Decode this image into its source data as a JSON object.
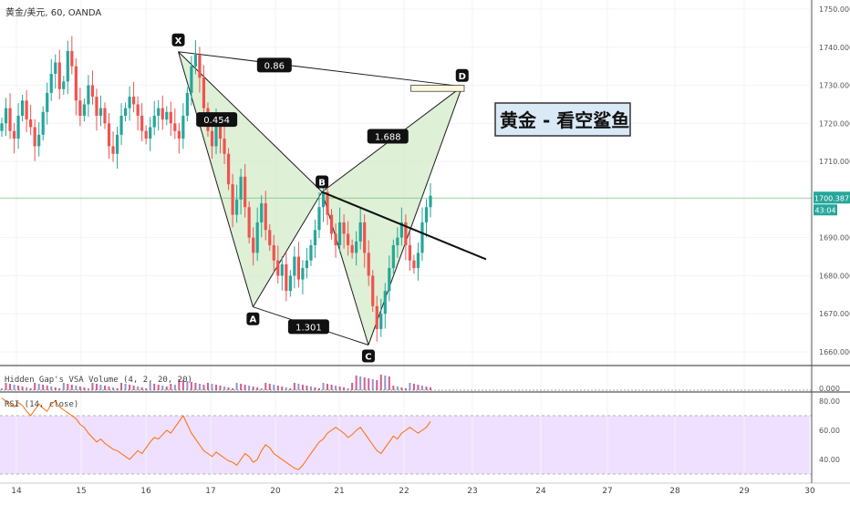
{
  "header": {
    "title": "黄金/美元, 60, OANDA"
  },
  "annotation_title": "黄金 - 看空鲨鱼",
  "colors": {
    "up": "#26a69a",
    "down": "#ef5350",
    "pattern_fill": "#d6eccc",
    "pattern_stroke": "#1e1e1e",
    "rsi_line": "#ff6d00",
    "rsi_band": "#efe0ff",
    "price_line": "#4caf50",
    "price_tag": "#26a69a",
    "zone_fill": "#fff8dc"
  },
  "chart_data": [
    {
      "type": "candlestick",
      "title": "黄金/美元, 60, OANDA",
      "ylim": [
        1652,
        1753
      ],
      "yticks": [
        1660,
        1670,
        1680,
        1690,
        1700,
        1710,
        1720,
        1730,
        1740,
        1750
      ],
      "ytick_labels": [
        "1660.000",
        "1670.000",
        "1680.000",
        "1690.000",
        "1700.000",
        "1710.000",
        "1720.000",
        "1730.000",
        "1740.000",
        "1750.000"
      ],
      "xlim": [
        13.65,
        30
      ],
      "xticks": [
        14,
        15,
        16,
        17,
        20,
        21,
        22,
        23,
        24,
        27,
        28,
        29,
        30
      ],
      "xtick_labels": [
        "14",
        "15",
        "16",
        "17",
        "20",
        "21",
        "22",
        "23",
        "24",
        "27",
        "28",
        "29",
        "30"
      ],
      "last_price": "1700.387",
      "countdown": "43:04",
      "last_price_value": 1700.387,
      "candles_close": [
        1720,
        1724,
        1718,
        1716,
        1722,
        1726,
        1721,
        1719,
        1714,
        1717,
        1723,
        1728,
        1733,
        1736,
        1729,
        1731,
        1739,
        1735,
        1726,
        1722,
        1725,
        1730,
        1727,
        1722,
        1724,
        1720,
        1714,
        1712,
        1717,
        1722,
        1724,
        1727,
        1725,
        1722,
        1718,
        1716,
        1719,
        1722,
        1724,
        1721,
        1723,
        1720,
        1718,
        1716,
        1722,
        1728,
        1735,
        1738,
        1732,
        1724,
        1718,
        1714,
        1720,
        1716,
        1712,
        1704,
        1696,
        1700,
        1706,
        1698,
        1690,
        1686,
        1694,
        1699,
        1692,
        1688,
        1684,
        1680,
        1683,
        1676,
        1680,
        1685,
        1679,
        1682,
        1684,
        1688,
        1692,
        1698,
        1702,
        1696,
        1691,
        1688,
        1694,
        1691,
        1688,
        1686,
        1689,
        1694,
        1686,
        1680,
        1672,
        1666,
        1670,
        1676,
        1682,
        1688,
        1690,
        1694,
        1688,
        1684,
        1682,
        1686,
        1694,
        1698,
        1701
      ]
    },
    {
      "type": "pattern",
      "name": "XABCD",
      "points": [
        {
          "label": "X",
          "x": 16.5,
          "y": 1738.8
        },
        {
          "label": "A",
          "x": 18.96,
          "y": 1671.8
        },
        {
          "label": "B",
          "x": 20.73,
          "y": 1702.0
        },
        {
          "label": "C",
          "x": 21.45,
          "y": 1661.8
        },
        {
          "label": "D",
          "x": 22.85,
          "y": 1729.7
        }
      ],
      "ratios": [
        {
          "label": "0.454",
          "x": 17.28,
          "y": 1721.0
        },
        {
          "label": "1.301",
          "x": 20.52,
          "y": 1666.6
        },
        {
          "label": "1.688",
          "x": 21.75,
          "y": 1716.6
        },
        {
          "label": "0.86",
          "x": 19.95,
          "y": 1735.3
        }
      ],
      "trendline": {
        "x1": 20.73,
        "y1": 1702.0,
        "x2": 23.2,
        "y2": 1684.3
      },
      "target_zone": {
        "x1": 22.1,
        "x2": 22.88,
        "y1": 1728.4,
        "y2": 1730.0
      }
    },
    {
      "type": "bar",
      "title": "Hidden Gap's VSA Volume (4, 2, 20, 20)",
      "ytick_labels": [
        "0.000"
      ],
      "ytick_values": [
        0
      ]
    },
    {
      "type": "line",
      "title": "RSI (14, close)",
      "ylim": [
        28,
        85
      ],
      "yticks": [
        40,
        60,
        80
      ],
      "ytick_labels": [
        "40.00",
        "60.00",
        "80.00"
      ],
      "band": [
        30,
        70
      ],
      "values": [
        82,
        80,
        78,
        76,
        79,
        77,
        73,
        70,
        74,
        78,
        75,
        73,
        78,
        80,
        76,
        74,
        72,
        70,
        68,
        64,
        62,
        58,
        55,
        52,
        54,
        51,
        49,
        47,
        46,
        44,
        42,
        40,
        43,
        46,
        44,
        48,
        52,
        55,
        54,
        57,
        60,
        58,
        62,
        66,
        70,
        64,
        58,
        54,
        50,
        46,
        44,
        42,
        45,
        43,
        41,
        39,
        38,
        36,
        40,
        44,
        42,
        38,
        40,
        46,
        50,
        48,
        44,
        42,
        40,
        38,
        36,
        34,
        33,
        36,
        40,
        44,
        48,
        52,
        54,
        58,
        60,
        62,
        60,
        58,
        55,
        57,
        60,
        62,
        58,
        54,
        50,
        46,
        44,
        48,
        52,
        56,
        54,
        58,
        60,
        62,
        60,
        58,
        60,
        62,
        66
      ]
    }
  ]
}
